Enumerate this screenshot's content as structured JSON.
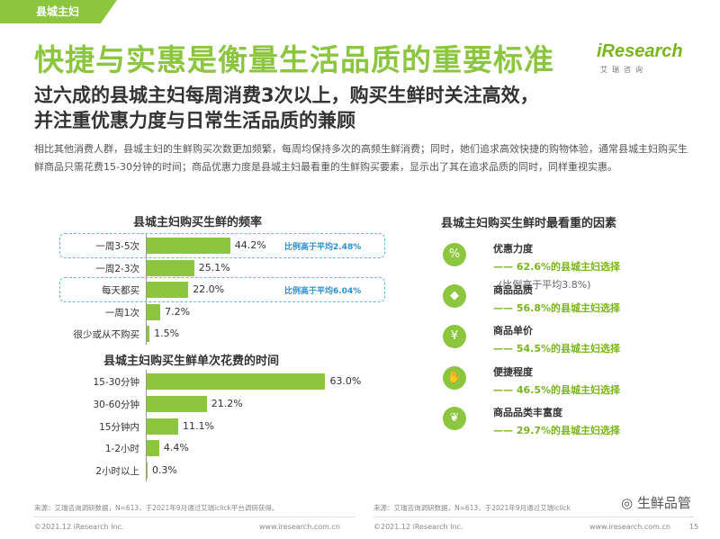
{
  "header": {
    "tag": "县城主妇"
  },
  "title": "快捷与实惠是衡量生活品质的重要标准",
  "logo": {
    "name": "iResearch",
    "sub": "艾瑞咨询"
  },
  "subtitle_lines": [
    "过六成的县城主妇每周消费3次以上，购买生鲜时关注高效，",
    "并注重优惠力度与日常生活品质的兼顾"
  ],
  "description": "相比其他消费人群，县城主妇的生鲜购买次数更加频繁，每周均保持多次的高频生鲜消费；同时，她们追求高效快捷的购物体验，通常县城主妇购买生鲜商品只需花费15-30分钟的时间；商品优惠力度是县城主妇最看重的生鲜购买要素，显示出了其在追求品质的同时，同样重视实惠。",
  "chart_data": [
    {
      "type": "bar",
      "title": "县城主妇购买生鲜的频率",
      "categories": [
        "一周3-5次",
        "一周2-3次",
        "每天都买",
        "一周1次",
        "很少或从不购买"
      ],
      "values": [
        44.2,
        25.1,
        22.0,
        7.2,
        1.5
      ],
      "value_labels": [
        "44.2%",
        "25.1%",
        "22.0%",
        "7.2%",
        "1.5%"
      ],
      "annotations": [
        {
          "category": "一周3-5次",
          "text": "比例高于平均2.48%"
        },
        {
          "category": "每天都买",
          "text": "比例高于平均6.04%"
        }
      ],
      "color": "#8cc63f"
    },
    {
      "type": "bar",
      "title": "县城主妇购买生鲜单次花费的时间",
      "categories": [
        "15-30分钟",
        "30-60分钟",
        "15分钟内",
        "1-2小时",
        "2小时以上"
      ],
      "values": [
        63.0,
        21.2,
        11.1,
        4.4,
        0.3
      ],
      "value_labels": [
        "63.0%",
        "21.2%",
        "11.1%",
        "4.4%",
        "0.3%"
      ],
      "color": "#8cc63f"
    }
  ],
  "factors": {
    "title": "县城主妇购买生鲜时最看重的因素",
    "items": [
      {
        "icon": "discount-icon",
        "glyph": "%",
        "name": "优惠力度",
        "value": "—— 62.6%的县城主妇选择",
        "note": "(比例高于平均3.8%)"
      },
      {
        "icon": "diamond-icon",
        "glyph": "◆",
        "name": "商品品质",
        "value": "—— 56.8%的县城主妇选择",
        "note": ""
      },
      {
        "icon": "yen-icon",
        "glyph": "¥",
        "name": "商品单价",
        "value": "—— 54.5%的县城主妇选择",
        "note": ""
      },
      {
        "icon": "convenience-hand-icon",
        "glyph": "✋",
        "name": "便捷程度",
        "value": "—— 46.5%的县城主妇选择",
        "note": ""
      },
      {
        "icon": "variety-plant-icon",
        "glyph": "❦",
        "name": "商品品类丰富度",
        "value": "—— 29.7%的县城主妇选择",
        "note": ""
      }
    ]
  },
  "source_left": "来源：艾瑞咨询调研数据，N=613，于2021年9月通过艾瑞iclick平台调研获得。",
  "source_right": "来源：艾瑞咨询调研数据，N=613，于2021年9月通过艾瑞iclick",
  "footer": {
    "copyright_left": "©2021.12 iResearch Inc.",
    "url_left": "www.iresearch.com.cn",
    "copyright_right": "©2021.12 iResearch Inc.",
    "url_right": "www.iresearch.com.cn",
    "page": "15"
  },
  "watermark": "生鲜品管"
}
